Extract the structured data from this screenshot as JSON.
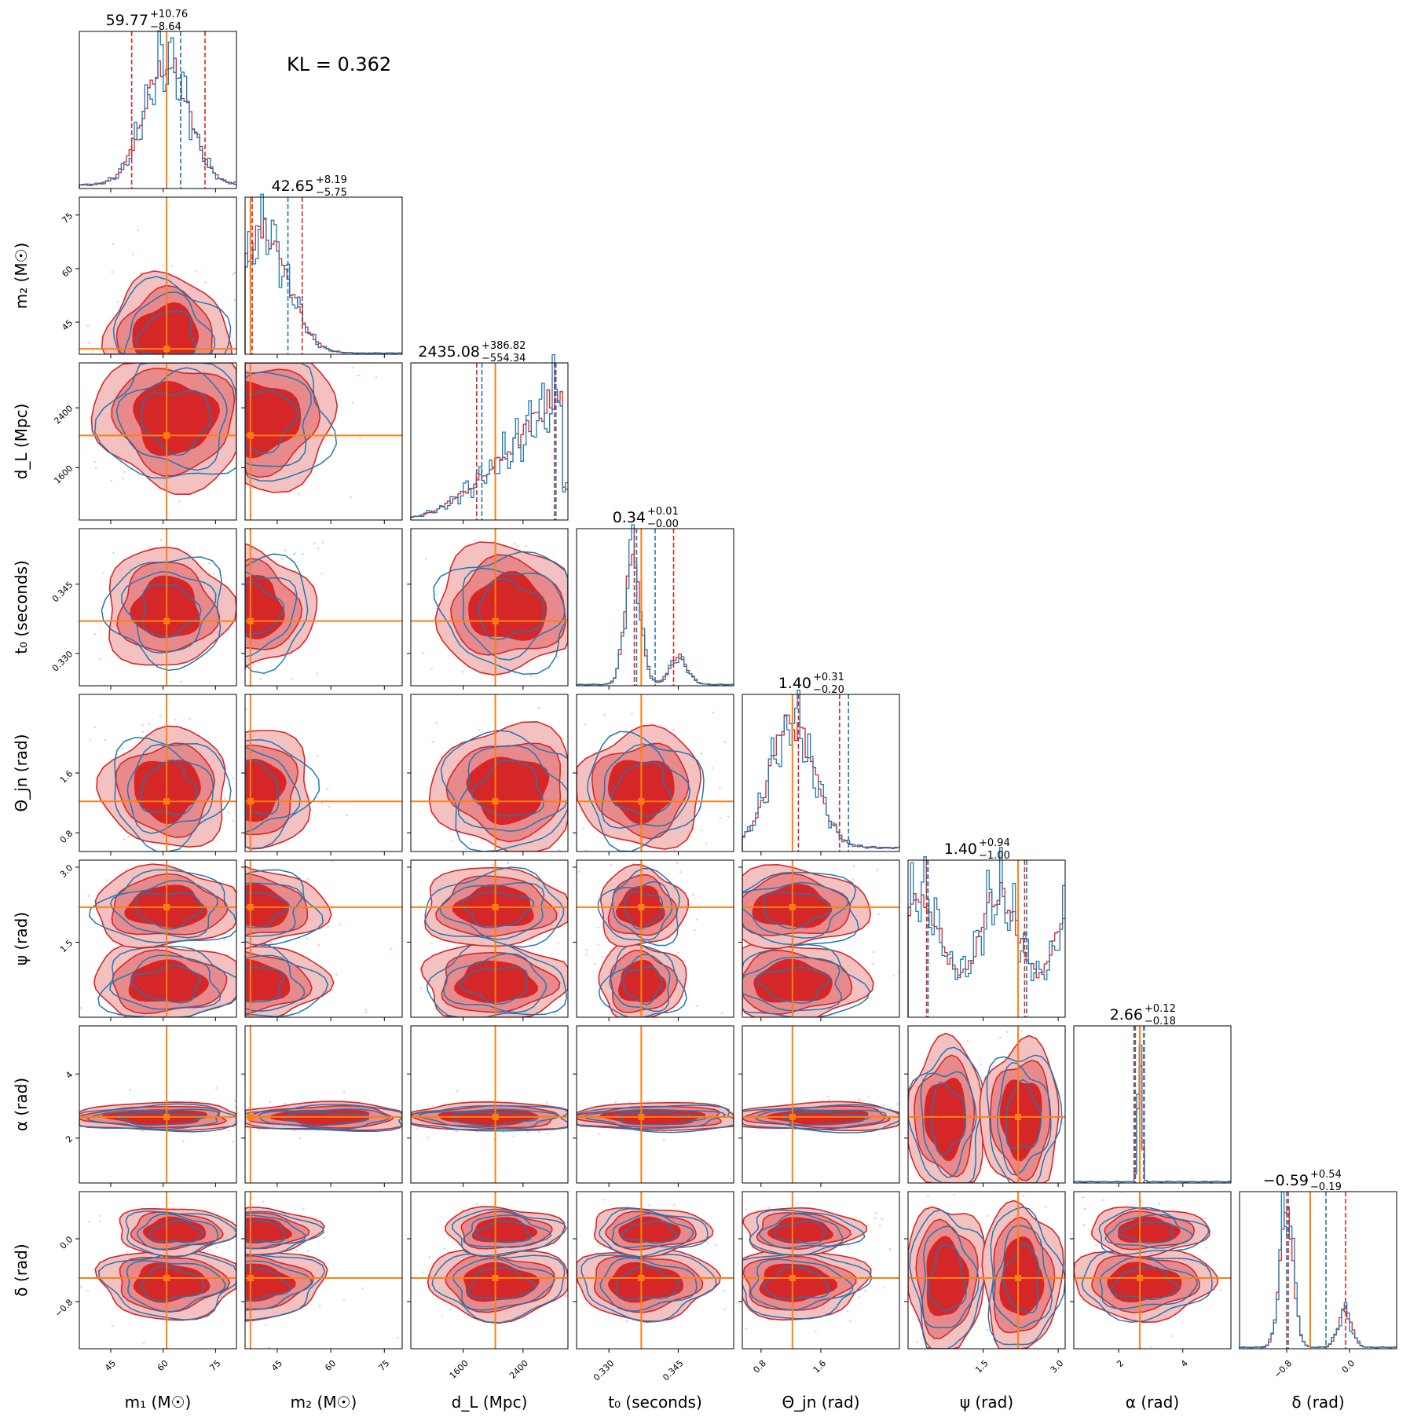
{
  "chart_data": {
    "type": "corner",
    "annotation": "KL = 0.362",
    "colors": {
      "series_a": "#d62728",
      "series_b": "#1f77b4",
      "truth": "#ff7f0e",
      "fill_light": "#f4c1c1",
      "fill_mid": "#e88a8b"
    },
    "series": [
      {
        "key": "a",
        "color": "#d62728"
      },
      {
        "key": "b",
        "color": "#1f77b4"
      }
    ],
    "parameters": [
      {
        "label": "m₁ (M☉)",
        "tick_values": [
          45,
          60,
          75
        ],
        "tick_labels": [
          "45",
          "60",
          "75"
        ],
        "range": [
          36,
          81
        ],
        "truth": 61,
        "title": {
          "main": "59.77",
          "plus": "+10.76",
          "minus": "−8.64"
        },
        "quantiles_a": [
          51,
          72
        ],
        "quantiles_b": [
          65
        ]
      },
      {
        "label": "m₂ (M☉)",
        "tick_values": [
          45,
          60,
          75
        ],
        "tick_labels": [
          "45",
          "60",
          "75"
        ],
        "range": [
          36,
          80
        ],
        "truth": 37.5,
        "title": {
          "main": "42.65",
          "plus": "+8.19",
          "minus": "−5.75"
        },
        "quantiles_a": [
          38,
          52
        ],
        "quantiles_b": [
          48
        ]
      },
      {
        "label": "d_L (Mpc)",
        "tick_values": [
          1600,
          2400
        ],
        "tick_labels": [
          "1600",
          "2400"
        ],
        "range": [
          900,
          3000
        ],
        "truth": 2030,
        "title": {
          "main": "2435.08",
          "plus": "+386.82",
          "minus": "−554.34"
        },
        "quantiles_a": [
          1780,
          2820
        ],
        "quantiles_b": [
          1850,
          2840
        ]
      },
      {
        "label": "t₀ (seconds)",
        "tick_values": [
          0.33,
          0.345
        ],
        "tick_labels": [
          "0.330",
          "0.345"
        ],
        "range": [
          0.323,
          0.357
        ],
        "truth": 0.337,
        "title": {
          "main": "0.34",
          "plus": "+0.01",
          "minus": "−0.00"
        },
        "quantiles_a": [
          0.3355,
          0.344
        ],
        "quantiles_b": [
          0.336,
          0.34
        ]
      },
      {
        "label": "Θ_jn (rad)",
        "tick_values": [
          0.8,
          1.6
        ],
        "tick_labels": [
          "0.8",
          "1.6"
        ],
        "range": [
          0.55,
          2.65
        ],
        "truth": 1.22,
        "title": {
          "main": "1.40",
          "plus": "+0.31",
          "minus": "−0.20"
        },
        "quantiles_a": [
          1.3,
          1.85
        ],
        "quantiles_b": [
          1.97
        ]
      },
      {
        "label": "ψ (rad)",
        "tick_values": [
          1.5,
          3.0
        ],
        "tick_labels": [
          "1.5",
          "3.0"
        ],
        "range": [
          0.0,
          3.14
        ],
        "truth": 2.2,
        "title": {
          "main": "1.40",
          "plus": "+0.94",
          "minus": "−1.00"
        },
        "quantiles_a": [
          0.37,
          2.33
        ],
        "quantiles_b": [
          0.4,
          2.37
        ]
      },
      {
        "label": "α (rad)",
        "tick_values": [
          2,
          4
        ],
        "tick_labels": [
          "2",
          "4"
        ],
        "range": [
          0.6,
          5.5
        ],
        "truth": 2.66,
        "title": {
          "main": "2.66",
          "plus": "+0.12",
          "minus": "−0.18"
        },
        "quantiles_a": [
          2.48,
          2.78
        ],
        "quantiles_b": [
          2.52,
          2.8
        ]
      },
      {
        "label": "δ (rad)",
        "tick_values": [
          -0.8,
          0.0
        ],
        "tick_labels": [
          "−0.8",
          "0.0"
        ],
        "range": [
          -1.4,
          0.6
        ],
        "truth": -0.5,
        "title": {
          "main": "−0.59",
          "plus": "+0.54",
          "minus": "−0.19"
        },
        "quantiles_a": [
          -0.78,
          -0.05
        ],
        "quantiles_b": [
          -0.8,
          -0.3
        ]
      }
    ]
  }
}
